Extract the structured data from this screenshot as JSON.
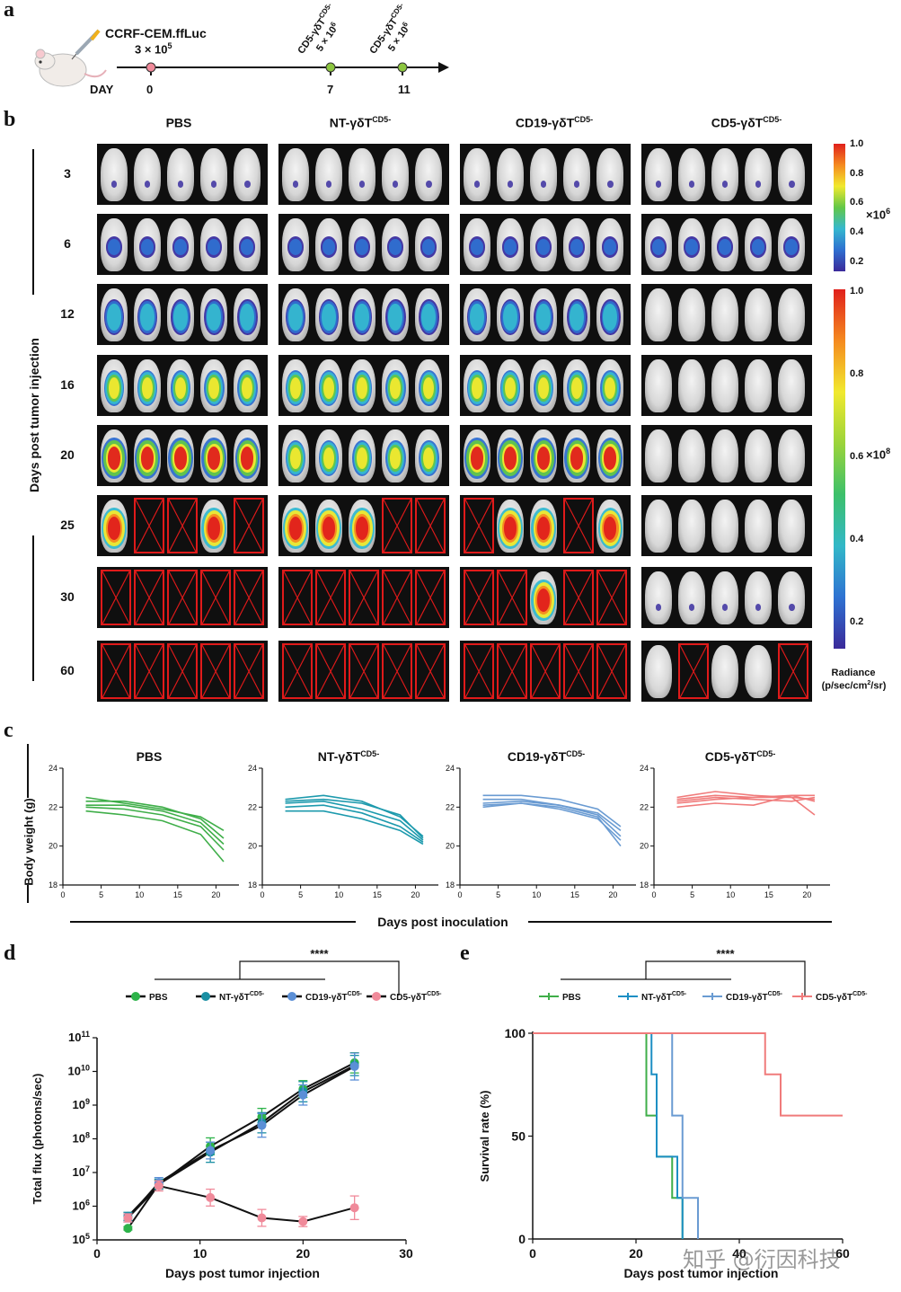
{
  "labels": {
    "a": "a",
    "b": "b",
    "c": "c",
    "d": "d",
    "e": "e"
  },
  "timeline": {
    "cell_line": "CCRF-CEM.ffLuc",
    "cell_dose": "3 × 10",
    "cell_dose_exp": "5",
    "day_label": "DAY",
    "days": [
      "0",
      "7",
      "11"
    ],
    "treatment_base": "CD5-γδT",
    "treatment_sup": "CD5-",
    "treatment_dose": "5 × 10",
    "treatment_dose_exp": "6",
    "marker_colors": [
      "#f08a9a",
      "#8cc63f",
      "#8cc63f"
    ]
  },
  "imaging": {
    "groups": [
      {
        "base": "PBS",
        "sup": ""
      },
      {
        "base": "NT-γδT",
        "sup": "CD5-"
      },
      {
        "base": "CD19-γδT",
        "sup": "CD5-"
      },
      {
        "base": "CD5-γδT",
        "sup": "CD5-"
      }
    ],
    "days": [
      "3",
      "6",
      "12",
      "16",
      "20",
      "25",
      "30",
      "60"
    ],
    "y_axis_label": "Days post tumor injection",
    "dead": [
      [
        [
          0,
          0,
          0,
          0,
          0
        ],
        [
          0,
          0,
          0,
          0,
          0
        ],
        [
          0,
          0,
          0,
          0,
          0
        ],
        [
          0,
          0,
          0,
          0,
          0
        ]
      ],
      [
        [
          0,
          0,
          0,
          0,
          0
        ],
        [
          0,
          0,
          0,
          0,
          0
        ],
        [
          0,
          0,
          0,
          0,
          0
        ],
        [
          0,
          0,
          0,
          0,
          0
        ]
      ],
      [
        [
          0,
          0,
          0,
          0,
          0
        ],
        [
          0,
          0,
          0,
          0,
          0
        ],
        [
          0,
          0,
          0,
          0,
          0
        ],
        [
          0,
          0,
          0,
          0,
          0
        ]
      ],
      [
        [
          0,
          0,
          0,
          0,
          0
        ],
        [
          0,
          0,
          0,
          0,
          0
        ],
        [
          0,
          0,
          0,
          0,
          0
        ],
        [
          0,
          0,
          0,
          0,
          0
        ]
      ],
      [
        [
          0,
          0,
          0,
          0,
          0
        ],
        [
          0,
          0,
          0,
          0,
          0
        ],
        [
          0,
          0,
          0,
          0,
          0
        ],
        [
          0,
          0,
          0,
          0,
          0
        ]
      ],
      [
        [
          0,
          1,
          1,
          0,
          1
        ],
        [
          0,
          0,
          0,
          1,
          1
        ],
        [
          1,
          0,
          0,
          1,
          0
        ],
        [
          0,
          0,
          0,
          0,
          0
        ]
      ],
      [
        [
          1,
          1,
          1,
          1,
          1
        ],
        [
          1,
          1,
          1,
          1,
          1
        ],
        [
          1,
          1,
          0,
          1,
          1
        ],
        [
          0,
          0,
          0,
          0,
          0
        ]
      ],
      [
        [
          1,
          1,
          1,
          1,
          1
        ],
        [
          1,
          1,
          1,
          1,
          1
        ],
        [
          1,
          1,
          1,
          1,
          1
        ],
        [
          0,
          1,
          0,
          0,
          1
        ]
      ]
    ],
    "signal_level": [
      [
        1,
        1,
        1,
        1
      ],
      [
        2,
        2,
        2,
        2
      ],
      [
        3,
        3,
        3,
        0
      ],
      [
        4,
        4,
        4,
        0
      ],
      [
        5,
        4,
        5,
        0
      ],
      [
        6,
        6,
        6,
        0
      ],
      [
        0,
        0,
        6,
        1
      ],
      [
        0,
        0,
        0,
        0
      ]
    ],
    "colorbar_top": {
      "ticks": [
        "1.0",
        "0.8",
        "0.6",
        "0.4",
        "0.2"
      ],
      "multiplier": "×10",
      "exp": "6"
    },
    "colorbar_bottom": {
      "ticks": [
        "1.0",
        "0.8",
        "0.6",
        "0.4",
        "0.2"
      ],
      "multiplier": "×10",
      "exp": "8"
    },
    "radiance_label": "Radiance",
    "radiance_unit_pre": "(p/sec/cm",
    "radiance_unit_sup": "2",
    "radiance_unit_post": "/sr)"
  },
  "weight": {
    "y_axis_label": "Body weight (g)",
    "x_axis_label": "Days post inoculation",
    "y_ticks": [
      "24",
      "22",
      "20",
      "18"
    ],
    "x_ticks": [
      "0",
      "5",
      "10",
      "15",
      "20"
    ],
    "colors": [
      "#3fae49",
      "#1d9aad",
      "#6a9bd2",
      "#f07b7b"
    ]
  },
  "flux": {
    "legend": [
      {
        "base": "PBS",
        "sup": ""
      },
      {
        "base": "NT-γδT",
        "sup": "CD5-"
      },
      {
        "base": "CD19-γδT",
        "sup": "CD5-"
      },
      {
        "base": "CD5-γδT",
        "sup": "CD5-"
      }
    ],
    "significance": "****",
    "y_axis_label": "Total flux (photons/sec)",
    "x_axis_label": "Days post tumor injection",
    "y_tick_base": "10",
    "y_tick_exps": [
      "11",
      "10",
      "9",
      "8",
      "7",
      "6",
      "5"
    ],
    "x_ticks": [
      "0",
      "10",
      "20",
      "30"
    ],
    "colors": [
      "#2db34a",
      "#1a8fa3",
      "#5b8fd6",
      "#f08a9a"
    ]
  },
  "survival": {
    "legend": [
      {
        "base": "PBS",
        "sup": ""
      },
      {
        "base": "NT-γδT",
        "sup": "CD5-"
      },
      {
        "base": "CD19-γδT",
        "sup": "CD5-"
      },
      {
        "base": "CD5-γδT",
        "sup": "CD5-"
      }
    ],
    "significance": "****",
    "y_axis_label": "Survival rate (%)",
    "x_axis_label": "Days post tumor injection",
    "y_ticks": [
      "100",
      "50",
      "0"
    ],
    "x_ticks": [
      "0",
      "20",
      "40",
      "60"
    ],
    "colors": [
      "#3fae49",
      "#1d8fc4",
      "#6a9bd2",
      "#f07b7b"
    ],
    "watermark": "知乎 @衍因科技"
  },
  "chart_data": [
    {
      "type": "line",
      "panel": "c",
      "title": "PBS",
      "xlabel": "Days post inoculation",
      "ylabel": "Body weight (g)",
      "xlim": [
        0,
        23
      ],
      "ylim": [
        18,
        24
      ],
      "series": [
        {
          "x": [
            3,
            8,
            13,
            18,
            21
          ],
          "values": [
            22.5,
            22.2,
            21.9,
            21.5,
            20.8
          ]
        },
        {
          "x": [
            3,
            8,
            13,
            18,
            21
          ],
          "values": [
            22.3,
            22.3,
            22.0,
            21.4,
            20.4
          ]
        },
        {
          "x": [
            3,
            8,
            13,
            18,
            21
          ],
          "values": [
            22.1,
            22.1,
            21.8,
            21.2,
            20.1
          ]
        },
        {
          "x": [
            3,
            8,
            13,
            18,
            21
          ],
          "values": [
            22.0,
            21.9,
            21.6,
            21.0,
            19.8
          ]
        },
        {
          "x": [
            3,
            8,
            13,
            18,
            21
          ],
          "values": [
            21.8,
            21.6,
            21.3,
            20.6,
            19.2
          ]
        }
      ]
    },
    {
      "type": "line",
      "panel": "c",
      "title": "NT-γδT CD5-",
      "xlabel": "Days post inoculation",
      "ylabel": "Body weight (g)",
      "xlim": [
        0,
        23
      ],
      "ylim": [
        18,
        24
      ],
      "series": [
        {
          "x": [
            3,
            8,
            13,
            18,
            21
          ],
          "values": [
            22.4,
            22.6,
            22.3,
            21.5,
            20.5
          ]
        },
        {
          "x": [
            3,
            8,
            13,
            18,
            21
          ],
          "values": [
            22.3,
            22.4,
            22.2,
            21.6,
            20.4
          ]
        },
        {
          "x": [
            3,
            8,
            13,
            18,
            21
          ],
          "values": [
            22.2,
            22.3,
            21.9,
            21.3,
            20.3
          ]
        },
        {
          "x": [
            3,
            8,
            13,
            18,
            21
          ],
          "values": [
            22.0,
            22.1,
            21.7,
            21.0,
            20.2
          ]
        },
        {
          "x": [
            3,
            8,
            13,
            18,
            21
          ],
          "values": [
            21.8,
            21.8,
            21.4,
            20.8,
            20.1
          ]
        }
      ]
    },
    {
      "type": "line",
      "panel": "c",
      "title": "CD19-γδT CD5-",
      "xlabel": "Days post inoculation",
      "ylabel": "Body weight (g)",
      "xlim": [
        0,
        23
      ],
      "ylim": [
        18,
        24
      ],
      "series": [
        {
          "x": [
            3,
            8,
            13,
            18,
            21
          ],
          "values": [
            22.6,
            22.6,
            22.4,
            21.9,
            21.0
          ]
        },
        {
          "x": [
            3,
            8,
            13,
            18,
            21
          ],
          "values": [
            22.4,
            22.4,
            22.1,
            21.7,
            20.8
          ]
        },
        {
          "x": [
            3,
            8,
            13,
            18,
            21
          ],
          "values": [
            22.2,
            22.3,
            22.1,
            21.6,
            20.5
          ]
        },
        {
          "x": [
            3,
            8,
            13,
            18,
            21
          ],
          "values": [
            22.1,
            22.2,
            21.9,
            21.4,
            20.3
          ]
        },
        {
          "x": [
            3,
            8,
            13,
            18,
            21
          ],
          "values": [
            22.0,
            22.2,
            22.0,
            21.5,
            20.0
          ]
        }
      ]
    },
    {
      "type": "line",
      "panel": "c",
      "title": "CD5-γδT CD5-",
      "xlabel": "Days post inoculation",
      "ylabel": "Body weight (g)",
      "xlim": [
        0,
        23
      ],
      "ylim": [
        18,
        24
      ],
      "series": [
        {
          "x": [
            3,
            8,
            13,
            18,
            21
          ],
          "values": [
            22.5,
            22.8,
            22.6,
            22.5,
            22.4
          ]
        },
        {
          "x": [
            3,
            8,
            13,
            18,
            21
          ],
          "values": [
            22.4,
            22.6,
            22.5,
            22.6,
            22.6
          ]
        },
        {
          "x": [
            3,
            8,
            13,
            18,
            21
          ],
          "values": [
            22.3,
            22.5,
            22.4,
            22.3,
            22.5
          ]
        },
        {
          "x": [
            3,
            8,
            13,
            18,
            21
          ],
          "values": [
            22.2,
            22.4,
            22.5,
            22.5,
            21.6
          ]
        },
        {
          "x": [
            3,
            8,
            13,
            18,
            21
          ],
          "values": [
            22.0,
            22.2,
            22.1,
            22.6,
            22.3
          ]
        }
      ]
    },
    {
      "type": "line",
      "panel": "d",
      "scale": "log",
      "xlabel": "Days post tumor injection",
      "ylabel": "Total flux (photons/sec)",
      "xlim": [
        0,
        30
      ],
      "ylim": [
        100000,
        100000000000
      ],
      "series": [
        {
          "name": "PBS",
          "x": [
            3,
            6,
            11,
            16,
            20,
            25
          ],
          "values": [
            220000,
            4500000,
            60000000,
            450000000,
            3000000000,
            18000000000
          ],
          "err_log": [
            0.05,
            0.12,
            0.25,
            0.25,
            0.25,
            0.3
          ]
        },
        {
          "name": "NT-γδT CD5-",
          "x": [
            3,
            6,
            11,
            16,
            20,
            25
          ],
          "values": [
            500000,
            4500000,
            40000000,
            300000000,
            2500000000,
            15000000000
          ],
          "err_log": [
            0.12,
            0.15,
            0.3,
            0.3,
            0.3,
            0.3
          ]
        },
        {
          "name": "CD19-γδT CD5-",
          "x": [
            3,
            6,
            11,
            16,
            20,
            25
          ],
          "values": [
            450000,
            5000000,
            45000000,
            250000000,
            2000000000,
            14000000000
          ],
          "err_log": [
            0.12,
            0.15,
            0.25,
            0.35,
            0.3,
            0.4
          ]
        },
        {
          "name": "CD5-γδT CD5-",
          "x": [
            3,
            6,
            11,
            16,
            20,
            25
          ],
          "values": [
            450000,
            4000000,
            1800000,
            450000,
            350000,
            900000
          ],
          "err_log": [
            0.12,
            0.15,
            0.25,
            0.25,
            0.15,
            0.35
          ]
        }
      ]
    },
    {
      "type": "line",
      "panel": "e",
      "step": true,
      "xlabel": "Days post tumor injection",
      "ylabel": "Survival rate (%)",
      "xlim": [
        0,
        60
      ],
      "ylim": [
        0,
        100
      ],
      "series": [
        {
          "name": "PBS",
          "x": [
            0,
            22,
            24,
            27,
            28,
            29
          ],
          "values": [
            100,
            60,
            40,
            20,
            20,
            0
          ]
        },
        {
          "name": "NT-γδT CD5-",
          "x": [
            0,
            23,
            24,
            26,
            28,
            29
          ],
          "values": [
            100,
            80,
            40,
            40,
            20,
            0
          ]
        },
        {
          "name": "CD19-γδT CD5-",
          "x": [
            0,
            23,
            27,
            29,
            32,
            32
          ],
          "values": [
            100,
            100,
            60,
            20,
            20,
            0
          ]
        },
        {
          "name": "CD5-γδT CD5-",
          "x": [
            0,
            45,
            48,
            60
          ],
          "values": [
            100,
            80,
            60,
            60
          ]
        }
      ]
    }
  ]
}
